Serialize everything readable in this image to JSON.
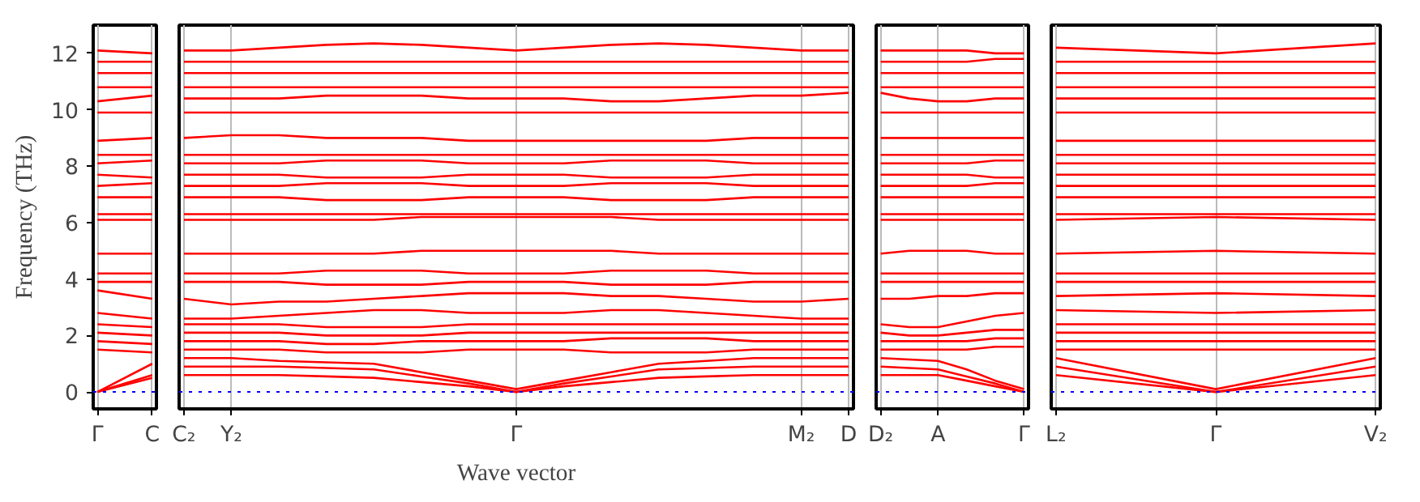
{
  "chart_data": [
    {
      "type": "line",
      "ylabel": "Frequency (THz)",
      "categories": [
        "Γ",
        "C"
      ],
      "ylim": [
        -0.6,
        13
      ],
      "yticks": [
        0,
        2,
        4,
        6,
        8,
        10,
        12
      ],
      "grid": "x",
      "line_style": "solid",
      "marker": "none",
      "ref_lines": [
        {
          "axis": "y",
          "value": 0,
          "color": "#0000ff",
          "line_style": "dotted"
        }
      ],
      "series": [
        {
          "color": "#ff0000",
          "values": [
            0,
            0.6
          ]
        },
        {
          "color": "#ff0000",
          "values": [
            0,
            0.5
          ]
        },
        {
          "color": "#ff0000",
          "values": [
            0,
            1.0
          ]
        },
        {
          "color": "#ff0000",
          "values": [
            1.5,
            1.4
          ]
        },
        {
          "color": "#ff0000",
          "values": [
            1.8,
            1.7
          ]
        },
        {
          "color": "#ff0000",
          "values": [
            2.1,
            2.0
          ]
        },
        {
          "color": "#ff0000",
          "values": [
            2.4,
            2.3
          ]
        },
        {
          "color": "#ff0000",
          "values": [
            2.8,
            2.6
          ]
        },
        {
          "color": "#ff0000",
          "values": [
            3.6,
            3.3
          ]
        },
        {
          "color": "#ff0000",
          "values": [
            3.9,
            3.9
          ]
        },
        {
          "color": "#ff0000",
          "values": [
            4.2,
            4.2
          ]
        },
        {
          "color": "#ff0000",
          "values": [
            4.9,
            4.9
          ]
        },
        {
          "color": "#ff0000",
          "values": [
            6.1,
            6.1
          ]
        },
        {
          "color": "#ff0000",
          "values": [
            6.3,
            6.3
          ]
        },
        {
          "color": "#ff0000",
          "values": [
            6.9,
            6.9
          ]
        },
        {
          "color": "#ff0000",
          "values": [
            7.3,
            7.4
          ]
        },
        {
          "color": "#ff0000",
          "values": [
            7.7,
            7.6
          ]
        },
        {
          "color": "#ff0000",
          "values": [
            8.1,
            8.2
          ]
        },
        {
          "color": "#ff0000",
          "values": [
            8.4,
            8.4
          ]
        },
        {
          "color": "#ff0000",
          "values": [
            8.9,
            9.0
          ]
        },
        {
          "color": "#ff0000",
          "values": [
            9.9,
            9.9
          ]
        },
        {
          "color": "#ff0000",
          "values": [
            10.3,
            10.5
          ]
        },
        {
          "color": "#ff0000",
          "values": [
            10.8,
            10.8
          ]
        },
        {
          "color": "#ff0000",
          "values": [
            11.3,
            11.3
          ]
        },
        {
          "color": "#ff0000",
          "values": [
            11.7,
            11.7
          ]
        },
        {
          "color": "#ff0000",
          "values": [
            12.1,
            12.0
          ]
        }
      ]
    },
    {
      "type": "line",
      "xlabel": "Wave vector",
      "categories": [
        "C₂",
        "Y₂",
        null,
        null,
        null,
        null,
        null,
        "Γ",
        null,
        null,
        null,
        null,
        null,
        "M₂",
        "D"
      ],
      "ylim": [
        -0.6,
        13
      ],
      "tick_labels": "x",
      "grid": "x",
      "line_style": "solid",
      "marker": "none",
      "ref_lines": [
        {
          "axis": "y",
          "value": 0,
          "color": "#0000ff",
          "line_style": "dotted"
        }
      ],
      "series": [
        {
          "color": "#ff0000",
          "values": [
            0.6,
            0.6,
            0.6,
            0.55,
            0.5,
            0.35,
            0.2,
            0,
            0.2,
            0.35,
            0.5,
            0.55,
            0.6,
            0.6,
            0.6
          ]
        },
        {
          "color": "#ff0000",
          "values": [
            0.9,
            0.9,
            0.9,
            0.85,
            0.8,
            0.55,
            0.3,
            0,
            0.3,
            0.55,
            0.8,
            0.85,
            0.9,
            0.9,
            0.9
          ]
        },
        {
          "color": "#ff0000",
          "values": [
            1.2,
            1.2,
            1.1,
            1.05,
            1.0,
            0.7,
            0.4,
            0.1,
            0.4,
            0.7,
            1.0,
            1.1,
            1.2,
            1.2,
            1.2
          ]
        },
        {
          "color": "#ff0000",
          "values": [
            1.5,
            1.5,
            1.5,
            1.4,
            1.4,
            1.4,
            1.5,
            1.5,
            1.5,
            1.4,
            1.4,
            1.4,
            1.5,
            1.5,
            1.5
          ]
        },
        {
          "color": "#ff0000",
          "values": [
            1.8,
            1.8,
            1.8,
            1.7,
            1.7,
            1.8,
            1.8,
            1.8,
            1.8,
            1.9,
            1.9,
            1.9,
            1.8,
            1.8,
            1.8
          ]
        },
        {
          "color": "#ff0000",
          "values": [
            2.1,
            2.1,
            2.1,
            2.0,
            2.0,
            2.0,
            2.1,
            2.1,
            2.1,
            2.1,
            2.1,
            2.1,
            2.1,
            2.1,
            2.1
          ]
        },
        {
          "color": "#ff0000",
          "values": [
            2.4,
            2.4,
            2.4,
            2.3,
            2.3,
            2.3,
            2.4,
            2.4,
            2.4,
            2.4,
            2.4,
            2.4,
            2.4,
            2.4,
            2.4
          ]
        },
        {
          "color": "#ff0000",
          "values": [
            2.6,
            2.6,
            2.7,
            2.8,
            2.9,
            2.9,
            2.8,
            2.8,
            2.8,
            2.9,
            2.9,
            2.8,
            2.7,
            2.6,
            2.6
          ]
        },
        {
          "color": "#ff0000",
          "values": [
            3.3,
            3.1,
            3.2,
            3.2,
            3.3,
            3.4,
            3.5,
            3.5,
            3.5,
            3.4,
            3.4,
            3.3,
            3.2,
            3.2,
            3.3
          ]
        },
        {
          "color": "#ff0000",
          "values": [
            3.9,
            3.9,
            3.9,
            3.8,
            3.8,
            3.8,
            3.9,
            3.9,
            3.9,
            3.8,
            3.8,
            3.8,
            3.9,
            3.9,
            3.9
          ]
        },
        {
          "color": "#ff0000",
          "values": [
            4.2,
            4.2,
            4.2,
            4.3,
            4.3,
            4.3,
            4.2,
            4.2,
            4.2,
            4.3,
            4.3,
            4.3,
            4.2,
            4.2,
            4.2
          ]
        },
        {
          "color": "#ff0000",
          "values": [
            4.9,
            4.9,
            4.9,
            4.9,
            4.9,
            5.0,
            5.0,
            5.0,
            5.0,
            5.0,
            4.9,
            4.9,
            4.9,
            4.9,
            4.9
          ]
        },
        {
          "color": "#ff0000",
          "values": [
            6.1,
            6.1,
            6.1,
            6.1,
            6.1,
            6.2,
            6.2,
            6.2,
            6.2,
            6.2,
            6.1,
            6.1,
            6.1,
            6.1,
            6.1
          ]
        },
        {
          "color": "#ff0000",
          "values": [
            6.3,
            6.3,
            6.3,
            6.3,
            6.3,
            6.3,
            6.3,
            6.3,
            6.3,
            6.3,
            6.3,
            6.3,
            6.3,
            6.3,
            6.3
          ]
        },
        {
          "color": "#ff0000",
          "values": [
            6.9,
            6.9,
            6.9,
            6.8,
            6.8,
            6.8,
            6.9,
            6.9,
            6.9,
            6.8,
            6.8,
            6.8,
            6.9,
            6.9,
            6.9
          ]
        },
        {
          "color": "#ff0000",
          "values": [
            7.3,
            7.3,
            7.3,
            7.4,
            7.4,
            7.4,
            7.3,
            7.3,
            7.3,
            7.4,
            7.4,
            7.4,
            7.3,
            7.3,
            7.3
          ]
        },
        {
          "color": "#ff0000",
          "values": [
            7.7,
            7.7,
            7.7,
            7.6,
            7.6,
            7.6,
            7.7,
            7.7,
            7.7,
            7.6,
            7.6,
            7.6,
            7.7,
            7.7,
            7.7
          ]
        },
        {
          "color": "#ff0000",
          "values": [
            8.1,
            8.1,
            8.1,
            8.2,
            8.2,
            8.2,
            8.1,
            8.1,
            8.1,
            8.2,
            8.2,
            8.2,
            8.1,
            8.1,
            8.1
          ]
        },
        {
          "color": "#ff0000",
          "values": [
            8.4,
            8.4,
            8.4,
            8.4,
            8.4,
            8.4,
            8.4,
            8.4,
            8.4,
            8.4,
            8.4,
            8.4,
            8.4,
            8.4,
            8.4
          ]
        },
        {
          "color": "#ff0000",
          "values": [
            9.0,
            9.1,
            9.1,
            9.0,
            9.0,
            9.0,
            8.9,
            8.9,
            8.9,
            8.9,
            8.9,
            8.9,
            9.0,
            9.0,
            9.0
          ]
        },
        {
          "color": "#ff0000",
          "values": [
            9.9,
            9.9,
            9.9,
            9.9,
            9.9,
            9.9,
            9.9,
            9.9,
            9.9,
            9.9,
            9.9,
            9.9,
            9.9,
            9.9,
            9.9
          ]
        },
        {
          "color": "#ff0000",
          "values": [
            10.4,
            10.4,
            10.4,
            10.5,
            10.5,
            10.5,
            10.4,
            10.4,
            10.4,
            10.3,
            10.3,
            10.4,
            10.5,
            10.5,
            10.6
          ]
        },
        {
          "color": "#ff0000",
          "values": [
            10.8,
            10.8,
            10.8,
            10.8,
            10.8,
            10.8,
            10.8,
            10.8,
            10.8,
            10.8,
            10.8,
            10.8,
            10.8,
            10.8,
            10.8
          ]
        },
        {
          "color": "#ff0000",
          "values": [
            11.3,
            11.3,
            11.3,
            11.3,
            11.3,
            11.3,
            11.3,
            11.3,
            11.3,
            11.3,
            11.3,
            11.3,
            11.3,
            11.3,
            11.3
          ]
        },
        {
          "color": "#ff0000",
          "values": [
            11.7,
            11.7,
            11.7,
            11.7,
            11.7,
            11.7,
            11.7,
            11.7,
            11.7,
            11.7,
            11.7,
            11.7,
            11.7,
            11.7,
            11.7
          ]
        },
        {
          "color": "#ff0000",
          "values": [
            12.1,
            12.1,
            12.2,
            12.3,
            12.35,
            12.3,
            12.2,
            12.1,
            12.2,
            12.3,
            12.35,
            12.3,
            12.2,
            12.1,
            12.1
          ]
        }
      ]
    },
    {
      "type": "line",
      "categories": [
        "D₂",
        null,
        "A",
        null,
        null,
        "Γ"
      ],
      "ylim": [
        -0.6,
        13
      ],
      "tick_labels": "x",
      "grid": "x",
      "line_style": "solid",
      "marker": "none",
      "ref_lines": [
        {
          "axis": "y",
          "value": 0,
          "color": "#0000ff",
          "line_style": "dotted"
        }
      ],
      "series": [
        {
          "color": "#ff0000",
          "values": [
            0.6,
            0.6,
            0.6,
            0.4,
            0.2,
            0
          ]
        },
        {
          "color": "#ff0000",
          "values": [
            0.9,
            0.85,
            0.8,
            0.55,
            0.3,
            0
          ]
        },
        {
          "color": "#ff0000",
          "values": [
            1.2,
            1.15,
            1.1,
            0.8,
            0.4,
            0.1
          ]
        },
        {
          "color": "#ff0000",
          "values": [
            1.5,
            1.5,
            1.5,
            1.5,
            1.6,
            1.6
          ]
        },
        {
          "color": "#ff0000",
          "values": [
            1.8,
            1.8,
            1.8,
            1.8,
            1.9,
            1.9
          ]
        },
        {
          "color": "#ff0000",
          "values": [
            2.1,
            2.0,
            2.0,
            2.1,
            2.2,
            2.2
          ]
        },
        {
          "color": "#ff0000",
          "values": [
            2.4,
            2.3,
            2.3,
            2.5,
            2.7,
            2.8
          ]
        },
        {
          "color": "#ff0000",
          "values": [
            3.3,
            3.3,
            3.4,
            3.4,
            3.5,
            3.5
          ]
        },
        {
          "color": "#ff0000",
          "values": [
            3.9,
            3.9,
            3.9,
            3.9,
            3.9,
            3.9
          ]
        },
        {
          "color": "#ff0000",
          "values": [
            4.2,
            4.2,
            4.2,
            4.2,
            4.2,
            4.2
          ]
        },
        {
          "color": "#ff0000",
          "values": [
            4.9,
            5.0,
            5.0,
            5.0,
            4.9,
            4.9
          ]
        },
        {
          "color": "#ff0000",
          "values": [
            6.1,
            6.1,
            6.1,
            6.1,
            6.1,
            6.1
          ]
        },
        {
          "color": "#ff0000",
          "values": [
            6.3,
            6.3,
            6.3,
            6.3,
            6.3,
            6.3
          ]
        },
        {
          "color": "#ff0000",
          "values": [
            6.9,
            6.9,
            6.9,
            6.9,
            6.9,
            6.9
          ]
        },
        {
          "color": "#ff0000",
          "values": [
            7.3,
            7.3,
            7.3,
            7.3,
            7.4,
            7.4
          ]
        },
        {
          "color": "#ff0000",
          "values": [
            7.7,
            7.7,
            7.7,
            7.7,
            7.6,
            7.6
          ]
        },
        {
          "color": "#ff0000",
          "values": [
            8.1,
            8.1,
            8.1,
            8.1,
            8.2,
            8.2
          ]
        },
        {
          "color": "#ff0000",
          "values": [
            8.4,
            8.4,
            8.4,
            8.4,
            8.4,
            8.4
          ]
        },
        {
          "color": "#ff0000",
          "values": [
            9.0,
            9.0,
            9.0,
            9.0,
            9.0,
            9.0
          ]
        },
        {
          "color": "#ff0000",
          "values": [
            10.6,
            10.4,
            10.3,
            10.3,
            10.4,
            10.4
          ]
        },
        {
          "color": "#ff0000",
          "values": [
            9.9,
            9.9,
            9.9,
            9.9,
            9.9,
            9.9
          ]
        },
        {
          "color": "#ff0000",
          "values": [
            10.8,
            10.8,
            10.8,
            10.8,
            10.8,
            10.8
          ]
        },
        {
          "color": "#ff0000",
          "values": [
            11.3,
            11.3,
            11.3,
            11.3,
            11.3,
            11.3
          ]
        },
        {
          "color": "#ff0000",
          "values": [
            11.7,
            11.7,
            11.7,
            11.7,
            11.8,
            11.8
          ]
        },
        {
          "color": "#ff0000",
          "values": [
            12.1,
            12.1,
            12.1,
            12.1,
            12.0,
            12.0
          ]
        }
      ]
    },
    {
      "type": "line",
      "categories": [
        "L₂",
        "Γ",
        "V₂"
      ],
      "ylim": [
        -0.6,
        13
      ],
      "tick_labels": "x",
      "grid": "x",
      "line_style": "solid",
      "marker": "none",
      "ref_lines": [
        {
          "axis": "y",
          "value": 0,
          "color": "#0000ff",
          "line_style": "dotted"
        }
      ],
      "series": [
        {
          "color": "#ff0000",
          "values": [
            0.6,
            0,
            0.6
          ]
        },
        {
          "color": "#ff0000",
          "values": [
            0.9,
            0,
            0.9
          ]
        },
        {
          "color": "#ff0000",
          "values": [
            1.2,
            0.1,
            1.2
          ]
        },
        {
          "color": "#ff0000",
          "values": [
            1.5,
            1.5,
            1.5
          ]
        },
        {
          "color": "#ff0000",
          "values": [
            1.8,
            1.8,
            1.8
          ]
        },
        {
          "color": "#ff0000",
          "values": [
            2.1,
            2.1,
            2.1
          ]
        },
        {
          "color": "#ff0000",
          "values": [
            2.4,
            2.4,
            2.4
          ]
        },
        {
          "color": "#ff0000",
          "values": [
            2.9,
            2.8,
            2.9
          ]
        },
        {
          "color": "#ff0000",
          "values": [
            3.4,
            3.5,
            3.4
          ]
        },
        {
          "color": "#ff0000",
          "values": [
            3.9,
            3.9,
            3.9
          ]
        },
        {
          "color": "#ff0000",
          "values": [
            4.2,
            4.2,
            4.2
          ]
        },
        {
          "color": "#ff0000",
          "values": [
            4.9,
            5.0,
            4.9
          ]
        },
        {
          "color": "#ff0000",
          "values": [
            6.1,
            6.2,
            6.1
          ]
        },
        {
          "color": "#ff0000",
          "values": [
            6.3,
            6.3,
            6.3
          ]
        },
        {
          "color": "#ff0000",
          "values": [
            6.9,
            6.9,
            6.9
          ]
        },
        {
          "color": "#ff0000",
          "values": [
            7.3,
            7.3,
            7.3
          ]
        },
        {
          "color": "#ff0000",
          "values": [
            7.7,
            7.7,
            7.7
          ]
        },
        {
          "color": "#ff0000",
          "values": [
            8.1,
            8.1,
            8.1
          ]
        },
        {
          "color": "#ff0000",
          "values": [
            8.4,
            8.4,
            8.4
          ]
        },
        {
          "color": "#ff0000",
          "values": [
            8.9,
            8.9,
            8.9
          ]
        },
        {
          "color": "#ff0000",
          "values": [
            9.9,
            9.9,
            9.9
          ]
        },
        {
          "color": "#ff0000",
          "values": [
            10.4,
            10.4,
            10.4
          ]
        },
        {
          "color": "#ff0000",
          "values": [
            10.8,
            10.8,
            10.8
          ]
        },
        {
          "color": "#ff0000",
          "values": [
            11.3,
            11.3,
            11.3
          ]
        },
        {
          "color": "#ff0000",
          "values": [
            11.7,
            11.7,
            11.7
          ]
        },
        {
          "color": "#ff0000",
          "values": [
            12.2,
            12.0,
            12.35
          ]
        }
      ]
    }
  ]
}
